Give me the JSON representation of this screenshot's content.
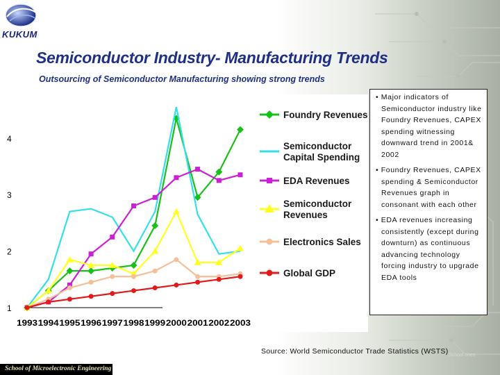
{
  "header": {
    "logo_text": "KUKUM",
    "title": "Semiconductor Industry- Manufacturing Trends",
    "subtitle": "Outsourcing of Semiconductor Manufacturing showing strong trends"
  },
  "bullets": [
    "• Major indicators of Semiconductor industry like Foundry Revenues, CAPEX spending witnessing downward trend in 2001& 2002",
    "• Foundry Revenues, CAPEX spending & Semiconductor Revenues graph in consonant with each other",
    "• EDA revenues increasing consistently (except during downturn) as continuous advancing technology forcing industry to upgrade EDA tools"
  ],
  "source": "Source: World Semiconductor Trade Statistics (WSTS)",
  "footer": "School of Microelectronic Engineering",
  "corner_mark": "School ones",
  "colors": {
    "title": "#1f2f86",
    "foundry": "#19c019",
    "capex": "#33e0e8",
    "eda": "#cc1fd6",
    "semi": "#ffff22",
    "electronics": "#f4c09a",
    "gdp": "#e41a1a"
  },
  "chart_data": {
    "type": "line",
    "title": "",
    "xlabel": "",
    "ylabel": "",
    "categories": [
      "1993",
      "1994",
      "1995",
      "1996",
      "1997",
      "1998",
      "1999",
      "2000",
      "2001",
      "2002",
      "2003"
    ],
    "y_ticks": [
      "1",
      "2",
      "3",
      "4"
    ],
    "ylim": [
      1,
      4.6
    ],
    "series": [
      {
        "name": "Foundry Revenues",
        "color": "#19c019",
        "marker": "diamond",
        "legend": [
          "Foundry Revenues"
        ],
        "values": [
          1.0,
          1.3,
          1.65,
          1.65,
          1.7,
          1.75,
          2.45,
          4.35,
          2.95,
          3.4,
          4.15
        ]
      },
      {
        "name": "Semiconductor Capital Spending",
        "color": "#33e0e8",
        "marker": "none",
        "legend": [
          "Semiconductor",
          "Capital Spending"
        ],
        "values": [
          1.0,
          1.5,
          2.7,
          2.75,
          2.6,
          2.0,
          2.7,
          4.55,
          2.65,
          1.95,
          2.0
        ]
      },
      {
        "name": "EDA Revenues",
        "color": "#cc1fd6",
        "marker": "square",
        "legend": [
          "EDA Revenues"
        ],
        "values": [
          1.0,
          1.1,
          1.4,
          1.95,
          2.25,
          2.8,
          2.95,
          3.3,
          3.45,
          3.25,
          3.35
        ]
      },
      {
        "name": "Semiconductor Revenues",
        "color": "#ffff22",
        "marker": "triangle",
        "legend": [
          "Semiconductor",
          "Revenues"
        ],
        "values": [
          1.0,
          1.3,
          1.85,
          1.75,
          1.75,
          1.6,
          2.0,
          2.7,
          1.8,
          1.8,
          2.05
        ]
      },
      {
        "name": "Electronics Sales",
        "color": "#f4c09a",
        "marker": "circle",
        "legend": [
          "Electronics Sales"
        ],
        "values": [
          1.0,
          1.15,
          1.35,
          1.45,
          1.55,
          1.55,
          1.65,
          1.85,
          1.55,
          1.55,
          1.6
        ]
      },
      {
        "name": "Global GDP",
        "color": "#e41a1a",
        "marker": "circle",
        "legend": [
          "Global GDP"
        ],
        "values": [
          1.0,
          1.1,
          1.15,
          1.2,
          1.25,
          1.3,
          1.35,
          1.4,
          1.45,
          1.5,
          1.55
        ]
      }
    ]
  }
}
